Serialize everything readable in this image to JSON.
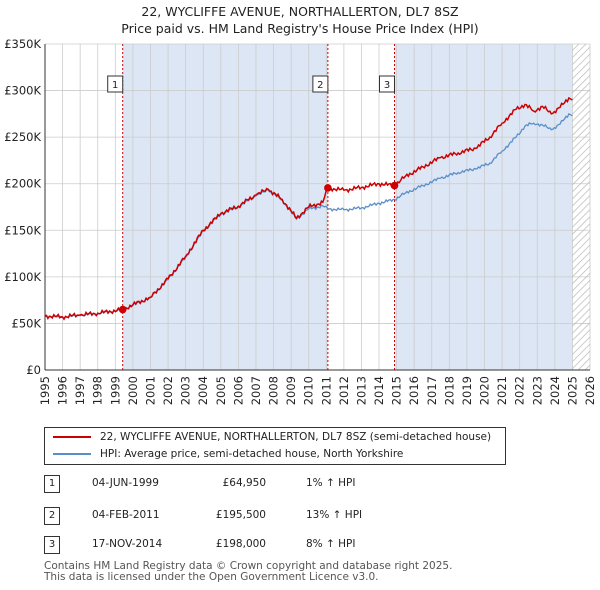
{
  "header": {
    "title_line1": "22, WYCLIFFE AVENUE, NORTHALLERTON, DL7 8SZ",
    "title_line2": "Price paid vs. HM Land Registry's House Price Index (HPI)"
  },
  "legend": {
    "property_label": "22, WYCLIFFE AVENUE, NORTHALLERTON, DL7 8SZ (semi-detached house)",
    "hpi_label": "HPI: Average price, semi-detached house, North Yorkshire"
  },
  "colors": {
    "property": "#cc0000",
    "hpi": "#5b8ec9",
    "shade": "#dce6f5",
    "grid": "#cccccc",
    "marker_line": "#cc0000"
  },
  "sales": [
    {
      "num": "1",
      "date": "04-JUN-1999",
      "price": "£64,950",
      "hpi": "1% ↑ HPI",
      "year": 1999.42,
      "value": 64950
    },
    {
      "num": "2",
      "date": "04-FEB-2011",
      "price": "£195,500",
      "hpi": "13% ↑ HPI",
      "year": 2011.09,
      "value": 195500
    },
    {
      "num": "3",
      "date": "17-NOV-2014",
      "price": "£198,000",
      "hpi": "8% ↑ HPI",
      "year": 2014.88,
      "value": 198000
    }
  ],
  "footer": {
    "line1": "Contains HM Land Registry data © Crown copyright and database right 2025.",
    "line2": "This data is licensed under the Open Government Licence v3.0."
  },
  "chart_data": {
    "type": "line",
    "title": "22, WYCLIFFE AVENUE, NORTHALLERTON, DL7 8SZ",
    "subtitle": "Price paid vs. HM Land Registry's House Price Index (HPI)",
    "xlabel": "",
    "ylabel": "",
    "xlim": [
      1995,
      2026
    ],
    "ylim": [
      0,
      350000
    ],
    "y_ticks": [
      0,
      50000,
      100000,
      150000,
      200000,
      250000,
      300000,
      350000
    ],
    "y_tick_labels": [
      "£0",
      "£50K",
      "£100K",
      "£150K",
      "£200K",
      "£250K",
      "£300K",
      "£350K"
    ],
    "x_ticks": [
      "1995",
      "1996",
      "1997",
      "1998",
      "1999",
      "2000",
      "2001",
      "2002",
      "2003",
      "2004",
      "2005",
      "2006",
      "2007",
      "2008",
      "2009",
      "2010",
      "2011",
      "2012",
      "2013",
      "2014",
      "2015",
      "2016",
      "2017",
      "2018",
      "2019",
      "2020",
      "2021",
      "2022",
      "2023",
      "2024",
      "2025",
      "2026"
    ],
    "shaded_ranges": [
      [
        1999.42,
        2011.09
      ],
      [
        2014.88,
        2025.0
      ]
    ],
    "hatched_range": [
      2025.0,
      2026.0
    ],
    "series": [
      {
        "name": "22, WYCLIFFE AVENUE, NORTHALLERTON, DL7 8SZ (semi-detached house)",
        "x": [
          1995.0,
          1996.0,
          1997.0,
          1998.0,
          1999.42,
          2000.0,
          2001.0,
          2002.0,
          2003.0,
          2004.0,
          2005.0,
          2006.0,
          2007.0,
          2007.7,
          2008.5,
          2009.3,
          2010.0,
          2010.8,
          2011.09,
          2012.0,
          2013.0,
          2014.0,
          2014.88,
          2015.5,
          2016.5,
          2017.5,
          2018.5,
          2019.5,
          2020.3,
          2021.0,
          2021.8,
          2022.3,
          2022.8,
          2023.3,
          2023.8,
          2024.3,
          2024.8,
          2025.0
        ],
        "values": [
          58000,
          57000,
          59000,
          61000,
          64950,
          70000,
          78000,
          98000,
          122000,
          150000,
          168000,
          176000,
          188000,
          194000,
          183000,
          163000,
          175000,
          180000,
          195500,
          193000,
          196000,
          200000,
          198000,
          208000,
          218000,
          228000,
          233000,
          238000,
          250000,
          265000,
          280000,
          285000,
          278000,
          283000,
          275000,
          282000,
          292000,
          290000
        ]
      },
      {
        "name": "HPI: Average price, semi-detached house, North Yorkshire",
        "x": [
          1995.0,
          1996.0,
          1997.0,
          1998.0,
          1999.42,
          2000.0,
          2001.0,
          2002.0,
          2003.0,
          2004.0,
          2005.0,
          2006.0,
          2007.0,
          2007.7,
          2008.5,
          2009.3,
          2010.0,
          2010.8,
          2011.09,
          2012.0,
          2013.0,
          2014.0,
          2014.88,
          2015.5,
          2016.5,
          2017.5,
          2018.5,
          2019.5,
          2020.3,
          2021.0,
          2021.8,
          2022.3,
          2022.8,
          2023.3,
          2023.8,
          2024.3,
          2024.8,
          2025.0
        ],
        "values": [
          57500,
          56500,
          58500,
          60500,
          64300,
          69500,
          77500,
          97000,
          121000,
          149000,
          167000,
          175000,
          187000,
          193000,
          182000,
          162000,
          173000,
          176000,
          173000,
          172000,
          174000,
          179000,
          183000,
          190000,
          198000,
          206000,
          212000,
          216000,
          222000,
          235000,
          250000,
          262000,
          265000,
          263000,
          258000,
          264000,
          275000,
          273000
        ]
      }
    ]
  }
}
